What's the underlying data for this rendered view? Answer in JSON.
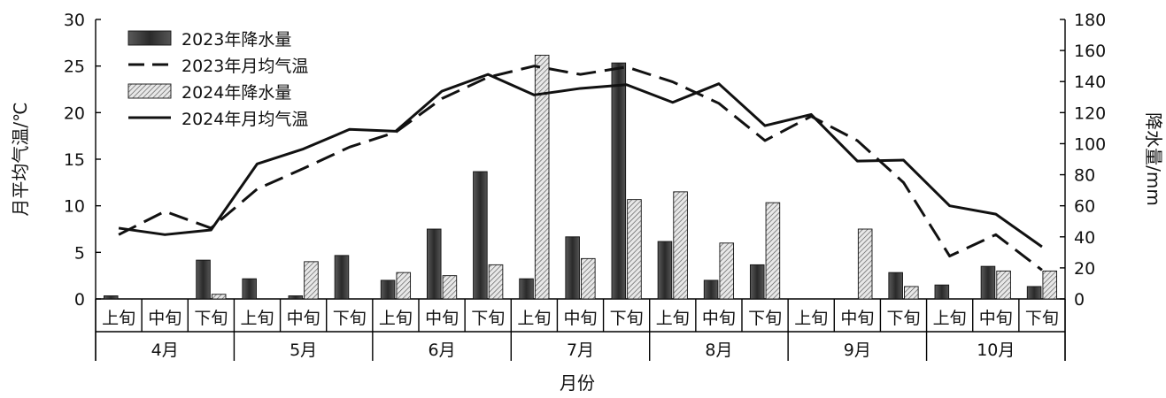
{
  "chart_data": {
    "type": "bar",
    "xlabel": "月份",
    "ylabel_left": "月平均气温/℃",
    "ylabel_right": "降水量/mm",
    "ylim_left": [
      0,
      30
    ],
    "ylim_right": [
      0,
      180
    ],
    "yticks_left": [
      "0",
      "5",
      "10",
      "15",
      "20",
      "25",
      "30"
    ],
    "yticks_right": [
      "0",
      "20",
      "40",
      "60",
      "80",
      "100",
      "120",
      "140",
      "160",
      "180"
    ],
    "grid": false,
    "legend_position": "top-left",
    "categories": [
      "上旬",
      "中旬",
      "下旬",
      "上旬",
      "中旬",
      "下旬",
      "上旬",
      "中旬",
      "下旬",
      "上旬",
      "中旬",
      "下旬",
      "上旬",
      "中旬",
      "下旬",
      "上旬",
      "中旬",
      "下旬",
      "上旬",
      "中旬",
      "下旬"
    ],
    "months": [
      "4月",
      "5月",
      "6月",
      "7月",
      "8月",
      "9月",
      "10月"
    ],
    "series": [
      {
        "name": "2023年降水量",
        "kind": "bar",
        "axis": "right",
        "color": "#3a3a3a",
        "values": [
          2,
          0,
          25,
          13,
          2,
          28,
          12,
          45,
          82,
          13,
          40,
          152,
          37,
          12,
          22,
          0,
          0,
          17,
          9,
          21,
          8
        ]
      },
      {
        "name": "2023年月均气温",
        "kind": "line",
        "style": "dashed",
        "axis": "left",
        "color": "#111111",
        "values": [
          6.9,
          9.4,
          7.6,
          11.8,
          14.0,
          16.3,
          17.9,
          21.5,
          23.8,
          25.0,
          24.1,
          24.9,
          23.3,
          21.0,
          17.0,
          19.6,
          17.0,
          12.5,
          4.6,
          6.9,
          3.1
        ]
      },
      {
        "name": "2024年降水量",
        "kind": "bar",
        "axis": "right",
        "color": "#bcbcbc",
        "values": [
          0,
          0,
          3,
          0,
          24,
          0,
          17,
          15,
          22,
          157,
          26,
          64,
          69,
          36,
          62,
          0,
          45,
          8,
          0,
          18,
          18
        ]
      },
      {
        "name": "2024年月均气温",
        "kind": "line",
        "style": "solid",
        "axis": "left",
        "color": "#111111",
        "values": [
          7.6,
          6.9,
          7.4,
          14.5,
          16.1,
          18.2,
          18.0,
          22.3,
          24.1,
          21.9,
          22.6,
          23.0,
          21.1,
          23.1,
          18.6,
          19.8,
          14.8,
          14.9,
          10.0,
          9.1,
          5.6
        ]
      }
    ]
  }
}
